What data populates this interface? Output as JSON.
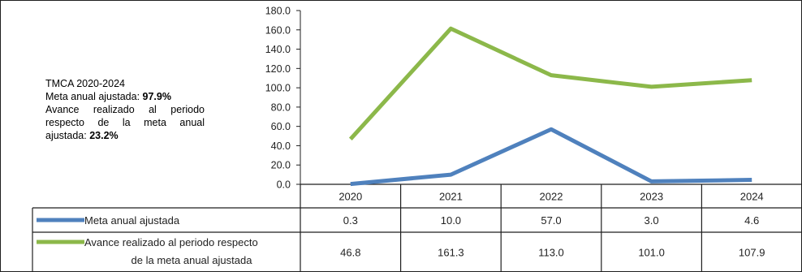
{
  "annotation": {
    "heading": "TMCA 2020-2024",
    "line2_text": "Meta anual ajustada: ",
    "line2_value": "97.9%",
    "line3_text": "Avance realizado al periodo respecto de la meta anual ajustada: ",
    "line3_value": "23.2%"
  },
  "colors": {
    "meta": "#4f81bd",
    "avance": "#8cb84a",
    "border": "#1f1f1f",
    "grid": "#000000"
  },
  "chart_data": {
    "type": "line",
    "categories": [
      "2020",
      "2021",
      "2022",
      "2023",
      "2024"
    ],
    "ylim": [
      0,
      180
    ],
    "ytick_step": 20,
    "ytick_labels": [
      "0.0",
      "20.0",
      "40.0",
      "60.0",
      "80.0",
      "100.0",
      "120.0",
      "140.0",
      "160.0",
      "180.0"
    ],
    "grid": false,
    "legend": "data-table",
    "series": [
      {
        "name": "Meta anual ajustada",
        "name_lines": [
          "Meta anual ajustada"
        ],
        "color": "#4f81bd",
        "values": [
          0.3,
          10.0,
          57.0,
          3.0,
          4.6
        ],
        "labels": [
          "0.3",
          "10.0",
          "57.0",
          "3.0",
          "4.6"
        ]
      },
      {
        "name": "Avance realizado al periodo respecto de la meta anual ajustada",
        "name_lines": [
          "Avance realizado al periodo respecto",
          "de la meta anual ajustada"
        ],
        "color": "#8cb84a",
        "values": [
          46.8,
          161.3,
          113.0,
          101.0,
          107.9
        ],
        "labels": [
          "46.8",
          "161.3",
          "113.0",
          "101.0",
          "107.9"
        ]
      }
    ]
  }
}
